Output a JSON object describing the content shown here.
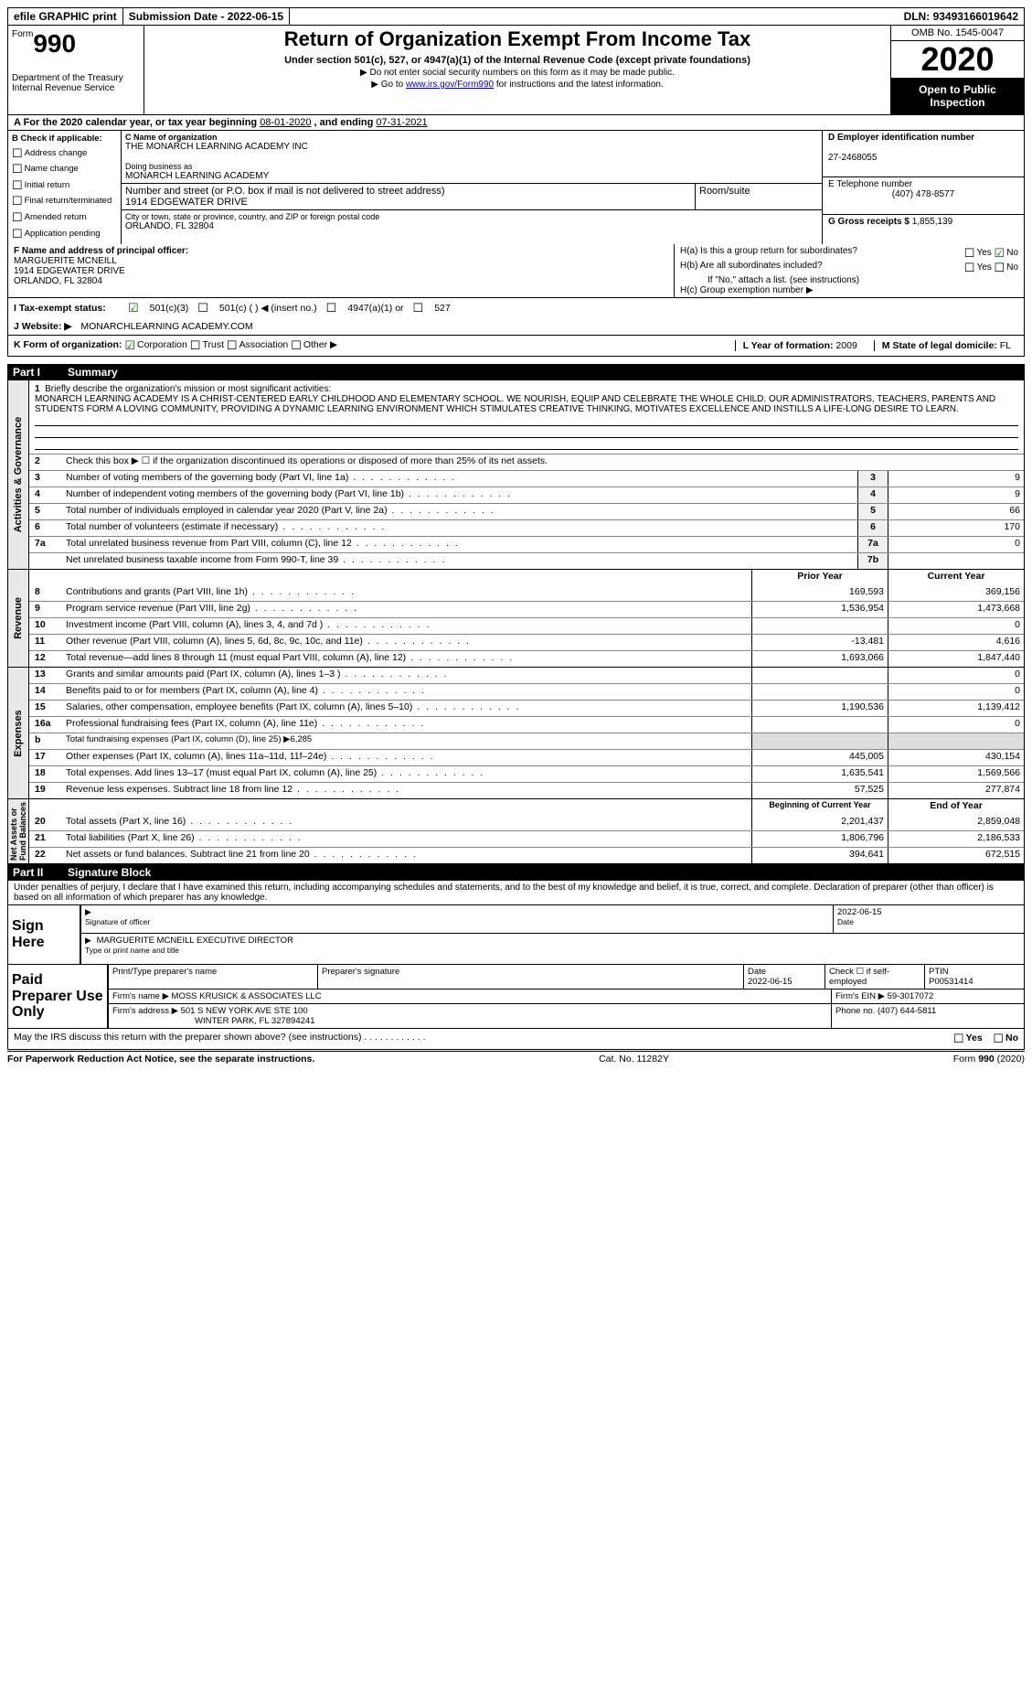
{
  "top": {
    "efile": "efile GRAPHIC print",
    "submission_label": "Submission Date - ",
    "submission_date": "2022-06-15",
    "dln_label": "DLN: ",
    "dln": "93493166019642"
  },
  "header": {
    "form_word": "Form",
    "form_num": "990",
    "dept": "Department of the Treasury\nInternal Revenue Service",
    "title": "Return of Organization Exempt From Income Tax",
    "subtitle": "Under section 501(c), 527, or 4947(a)(1) of the Internal Revenue Code (except private foundations)",
    "note1": "▶ Do not enter social security numbers on this form as it may be made public.",
    "note2_pre": "▶ Go to ",
    "note2_link": "www.irs.gov/Form990",
    "note2_post": " for instructions and the latest information.",
    "omb": "OMB No. 1545-0047",
    "year": "2020",
    "open": "Open to Public Inspection"
  },
  "rowA": {
    "text_pre": "A For the 2020 calendar year, or tax year beginning ",
    "begin": "08-01-2020",
    "text_mid": "   , and ending ",
    "end": "07-31-2021"
  },
  "colB": {
    "check_label": "B Check if applicable:",
    "opts": [
      "Address change",
      "Name change",
      "Initial return",
      "Final return/terminated",
      "Amended return",
      "Application pending"
    ]
  },
  "colC": {
    "name_label": "C Name of organization",
    "name": "THE MONARCH LEARNING ACADEMY INC",
    "dba_label": "Doing business as",
    "dba": "MONARCH LEARNING ACADEMY",
    "street_label": "Number and street (or P.O. box if mail is not delivered to street address)",
    "street": "1914 EDGEWATER DRIVE",
    "suite_label": "Room/suite",
    "city_label": "City or town, state or province, country, and ZIP or foreign postal code",
    "city": "ORLANDO, FL  32804"
  },
  "colDE": {
    "d_label": "D Employer identification number",
    "ein": "27-2468055",
    "e_label": "E Telephone number",
    "phone": "(407) 478-8577",
    "g_label": "G Gross receipts $ ",
    "gross": "1,855,139"
  },
  "rowF": {
    "label": "F Name and address of principal officer:",
    "name": "MARGUERITE MCNEILL",
    "addr1": "1914 EDGEWATER DRIVE",
    "addr2": "ORLANDO, FL  32804"
  },
  "rowH": {
    "ha": "H(a)  Is this a group return for subordinates?",
    "hb": "H(b)  Are all subordinates included?",
    "hb_note": "If \"No,\" attach a list. (see instructions)",
    "hc": "H(c)  Group exemption number ▶",
    "yes": "Yes",
    "no": "No"
  },
  "rowI": {
    "label": "I   Tax-exempt status:",
    "o1": "501(c)(3)",
    "o2": "501(c) (   ) ◀ (insert no.)",
    "o3": "4947(a)(1) or",
    "o4": "527"
  },
  "rowJ": {
    "label": "J  Website: ▶",
    "val": "MONARCHLEARNING ACADEMY.COM"
  },
  "rowK": {
    "label": "K Form of organization:",
    "o1": "Corporation",
    "o2": "Trust",
    "o3": "Association",
    "o4": "Other ▶",
    "l_label": "L Year of formation: ",
    "l_val": "2009",
    "m_label": "M State of legal domicile: ",
    "m_val": "FL"
  },
  "part1": {
    "num": "Part I",
    "title": "Summary"
  },
  "summary": {
    "l1_label": "Briefly describe the organization's mission or most significant activities:",
    "mission": "MONARCH LEARNING ACADEMY IS A CHRIST-CENTERED EARLY CHILDHOOD AND ELEMENTARY SCHOOL. WE NOURISH, EQUIP AND CELEBRATE THE WHOLE CHILD. OUR ADMINISTRATORS, TEACHERS, PARENTS AND STUDENTS FORM A LOVING COMMUNITY, PROVIDING A DYNAMIC LEARNING ENVIRONMENT WHICH STIMULATES CREATIVE THINKING, MOTIVATES EXCELLENCE AND INSTILLS A LIFE-LONG DESIRE TO LEARN.",
    "l2": "Check this box ▶ ☐  if the organization discontinued its operations or disposed of more than 25% of its net assets.",
    "l3": "Number of voting members of the governing body (Part VI, line 1a)",
    "l3v": "9",
    "l4": "Number of independent voting members of the governing body (Part VI, line 1b)",
    "l4v": "9",
    "l5": "Total number of individuals employed in calendar year 2020 (Part V, line 2a)",
    "l5v": "66",
    "l6": "Total number of volunteers (estimate if necessary)",
    "l6v": "170",
    "l7a": "Total unrelated business revenue from Part VIII, column (C), line 12",
    "l7av": "0",
    "l7b": "Net unrelated business taxable income from Form 990-T, line 39",
    "l7bv": ""
  },
  "revenue": {
    "prior_h": "Prior Year",
    "curr_h": "Current Year",
    "rows": [
      {
        "n": "8",
        "t": "Contributions and grants (Part VIII, line 1h)",
        "p": "169,593",
        "c": "369,156"
      },
      {
        "n": "9",
        "t": "Program service revenue (Part VIII, line 2g)",
        "p": "1,536,954",
        "c": "1,473,668"
      },
      {
        "n": "10",
        "t": "Investment income (Part VIII, column (A), lines 3, 4, and 7d )",
        "p": "",
        "c": "0"
      },
      {
        "n": "11",
        "t": "Other revenue (Part VIII, column (A), lines 5, 6d, 8c, 9c, 10c, and 11e)",
        "p": "-13,481",
        "c": "4,616"
      },
      {
        "n": "12",
        "t": "Total revenue—add lines 8 through 11 (must equal Part VIII, column (A), line 12)",
        "p": "1,693,066",
        "c": "1,847,440"
      }
    ]
  },
  "expenses": {
    "rows": [
      {
        "n": "13",
        "t": "Grants and similar amounts paid (Part IX, column (A), lines 1–3 )",
        "p": "",
        "c": "0"
      },
      {
        "n": "14",
        "t": "Benefits paid to or for members (Part IX, column (A), line 4)",
        "p": "",
        "c": "0"
      },
      {
        "n": "15",
        "t": "Salaries, other compensation, employee benefits (Part IX, column (A), lines 5–10)",
        "p": "1,190,536",
        "c": "1,139,412"
      },
      {
        "n": "16a",
        "t": "Professional fundraising fees (Part IX, column (A), line 11e)",
        "p": "",
        "c": "0"
      },
      {
        "n": "b",
        "t": "Total fundraising expenses (Part IX, column (D), line 25) ▶6,285",
        "p": null,
        "c": null
      },
      {
        "n": "17",
        "t": "Other expenses (Part IX, column (A), lines 11a–11d, 11f–24e)",
        "p": "445,005",
        "c": "430,154"
      },
      {
        "n": "18",
        "t": "Total expenses. Add lines 13–17 (must equal Part IX, column (A), line 25)",
        "p": "1,635,541",
        "c": "1,569,566"
      },
      {
        "n": "19",
        "t": "Revenue less expenses. Subtract line 18 from line 12",
        "p": "57,525",
        "c": "277,874"
      }
    ]
  },
  "netassets": {
    "begin_h": "Beginning of Current Year",
    "end_h": "End of Year",
    "rows": [
      {
        "n": "20",
        "t": "Total assets (Part X, line 16)",
        "p": "2,201,437",
        "c": "2,859,048"
      },
      {
        "n": "21",
        "t": "Total liabilities (Part X, line 26)",
        "p": "1,806,796",
        "c": "2,186,533"
      },
      {
        "n": "22",
        "t": "Net assets or fund balances. Subtract line 21 from line 20",
        "p": "394,641",
        "c": "672,515"
      }
    ]
  },
  "vtabs": {
    "gov": "Activities & Governance",
    "rev": "Revenue",
    "exp": "Expenses",
    "net": "Net Assets or\nFund Balances"
  },
  "part2": {
    "num": "Part II",
    "title": "Signature Block"
  },
  "sig": {
    "decl": "Under penalties of perjury, I declare that I have examined this return, including accompanying schedules and statements, and to the best of my knowledge and belief, it is true, correct, and complete. Declaration of preparer (other than officer) is based on all information of which preparer has any knowledge.",
    "sign_here": "Sign Here",
    "sig_officer": "Signature of officer",
    "sig_date": "2022-06-15",
    "date_l": "Date",
    "name_title": "MARGUERITE MCNEILL  EXECUTIVE DIRECTOR",
    "name_title_l": "Type or print name and title"
  },
  "paid": {
    "label": "Paid Preparer Use Only",
    "prep_name_l": "Print/Type preparer's name",
    "prep_sig_l": "Preparer's signature",
    "date_l": "Date",
    "date": "2022-06-15",
    "check_l": "Check ☐ if self-employed",
    "ptin_l": "PTIN",
    "ptin": "P00531414",
    "firm_name_l": "Firm's name    ▶",
    "firm_name": "MOSS KRUSICK & ASSOCIATES LLC",
    "firm_ein_l": "Firm's EIN ▶",
    "firm_ein": "59-3017072",
    "firm_addr_l": "Firm's address ▶",
    "firm_addr1": "501 S NEW YORK AVE STE 100",
    "firm_addr2": "WINTER PARK, FL  327894241",
    "phone_l": "Phone no. ",
    "phone": "(407) 644-5811"
  },
  "discuss": {
    "text": "May the IRS discuss this return with the preparer shown above? (see instructions)",
    "yes": "Yes",
    "no": "No"
  },
  "footer": {
    "left": "For Paperwork Reduction Act Notice, see the separate instructions.",
    "mid": "Cat. No. 11282Y",
    "right": "Form 990 (2020)"
  }
}
